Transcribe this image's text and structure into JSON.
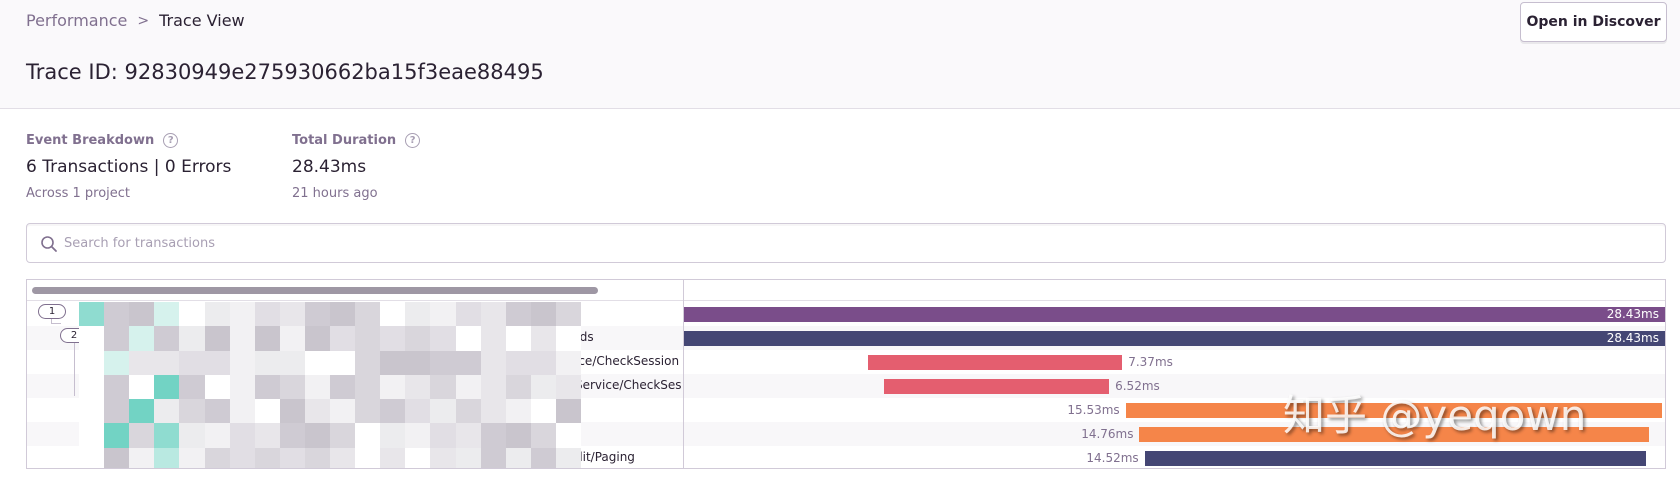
{
  "breadcrumb": {
    "parent": "Performance",
    "separator": ">",
    "current": "Trace View"
  },
  "header": {
    "title": "Trace ID: 92830949e275930662ba15f3eae88495",
    "discover_label": "Open in Discover"
  },
  "meta": {
    "events": {
      "label": "Event Breakdown",
      "value": "6 Transactions | 0 Errors",
      "sub": "Across 1 project"
    },
    "duration": {
      "label": "Total Duration",
      "value": "28.43ms",
      "sub": "21 hours ago"
    }
  },
  "search": {
    "placeholder": "Search for transactions",
    "value": ""
  },
  "trace": {
    "total_ms": 28.43,
    "tree_badges": [
      "1",
      "2"
    ],
    "rows": [
      {
        "label": "",
        "duration": "28.43ms",
        "start_ms": 0.0,
        "dur_ms": 28.43,
        "color": "#7a4d8a",
        "label_inside": true
      },
      {
        "label": "rds",
        "duration": "28.43ms",
        "start_ms": 0.0,
        "dur_ms": 28.43,
        "color": "#444674",
        "label_inside": true
      },
      {
        "label": "ice/CheckSession",
        "duration": "7.37ms",
        "start_ms": 5.33,
        "dur_ms": 7.37,
        "color": "#e45e6f",
        "label_inside": false
      },
      {
        "label": "Service/CheckSess",
        "duration": "6.52ms",
        "start_ms": 5.8,
        "dur_ms": 6.52,
        "color": "#e45e6f",
        "label_inside": false
      },
      {
        "label": "",
        "duration": "15.53ms",
        "start_ms": 12.8,
        "dur_ms": 15.53,
        "color": "#f58549",
        "label_inside": false,
        "before": true
      },
      {
        "label": "",
        "duration": "14.76ms",
        "start_ms": 13.2,
        "dur_ms": 14.76,
        "color": "#f58549",
        "label_inside": false,
        "before": true
      },
      {
        "label": "dit/Paging",
        "duration": "14.52ms",
        "start_ms": 13.35,
        "dur_ms": 14.52,
        "color": "#444674",
        "label_inside": false,
        "before": true
      }
    ]
  },
  "watermark": "知乎 @yeqown",
  "icons": {
    "search": "search-icon",
    "help": "help-icon"
  }
}
